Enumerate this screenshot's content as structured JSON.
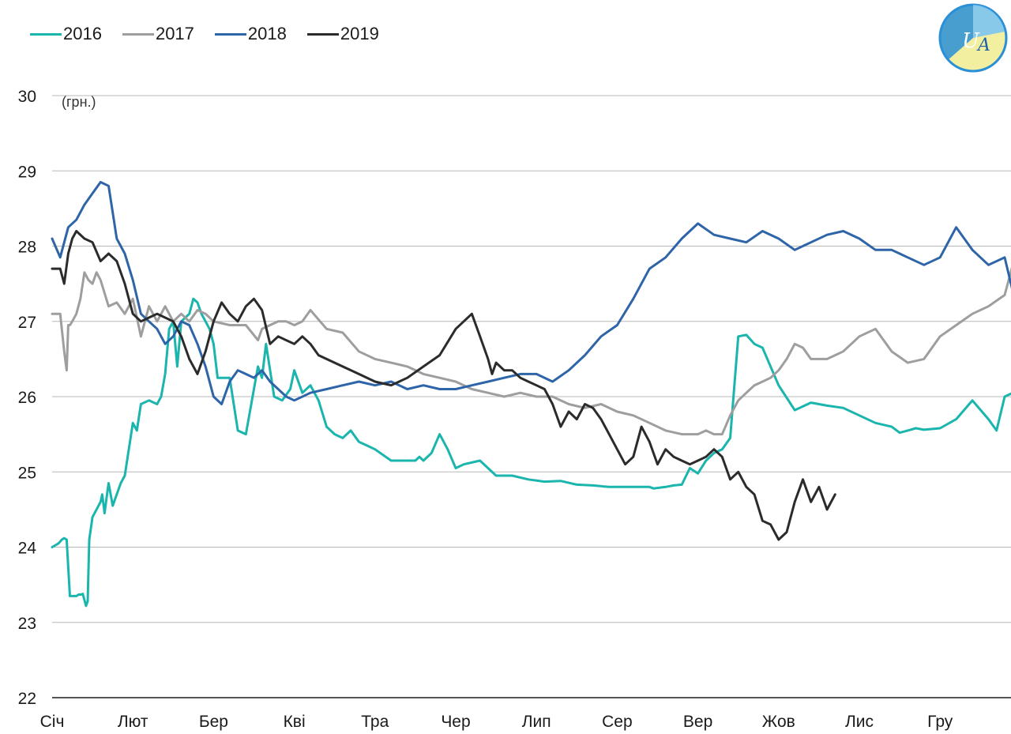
{
  "chart_data": {
    "type": "line",
    "unit_label": "(грн.)",
    "ylim": [
      22,
      30
    ],
    "yticks": [
      "22",
      "23",
      "24",
      "25",
      "26",
      "27",
      "28",
      "29",
      "30"
    ],
    "categories": [
      "Січ",
      "Лют",
      "Бер",
      "Кві",
      "Тра",
      "Чер",
      "Лип",
      "Сер",
      "Вер",
      "Жов",
      "Лис",
      "Гру"
    ],
    "grid": true,
    "legend_position": "top-left",
    "series": [
      {
        "name": "2016",
        "color": "#1ab5ad",
        "x": [
          0,
          0.08,
          0.12,
          0.15,
          0.18,
          0.22,
          0.3,
          0.33,
          0.36,
          0.38,
          0.42,
          0.44,
          0.46,
          0.5,
          0.55,
          0.6,
          0.62,
          0.65,
          0.68,
          0.7,
          0.75,
          0.8,
          0.85,
          0.9,
          1.0,
          1.05,
          1.1,
          1.2,
          1.3,
          1.35,
          1.4,
          1.45,
          1.5,
          1.55,
          1.6,
          1.65,
          1.7,
          1.75,
          1.8,
          1.85,
          1.95,
          2.0,
          2.05,
          2.1,
          2.2,
          2.3,
          2.4,
          2.5,
          2.55,
          2.6,
          2.65,
          2.75,
          2.85,
          2.95,
          3.0,
          3.1,
          3.2,
          3.3,
          3.4,
          3.5,
          3.6,
          3.7,
          3.8,
          3.9,
          4.0,
          4.2,
          4.4,
          4.5,
          4.55,
          4.6,
          4.7,
          4.8,
          4.9,
          5.0,
          5.1,
          5.3,
          5.5,
          5.7,
          5.9,
          6.1,
          6.3,
          6.5,
          6.7,
          6.9,
          7.1,
          7.3,
          7.4,
          7.45,
          7.6,
          7.7,
          7.8,
          7.9,
          8.0,
          8.1,
          8.2,
          8.3,
          8.4,
          8.5,
          8.6,
          8.7,
          8.8,
          9.0,
          9.2,
          9.4,
          9.6,
          9.8,
          10.0,
          10.2,
          10.4,
          10.5,
          10.6,
          10.7,
          10.8,
          11.0,
          11.2,
          11.4,
          11.6,
          11.7,
          11.8,
          11.9,
          12.0,
          12.1
        ],
        "values": [
          24.0,
          24.05,
          24.1,
          24.12,
          24.1,
          23.35,
          23.35,
          23.37,
          23.37,
          23.38,
          23.22,
          23.28,
          24.1,
          24.4,
          24.5,
          24.6,
          24.7,
          24.45,
          24.7,
          24.85,
          24.55,
          24.7,
          24.85,
          24.95,
          25.65,
          25.55,
          25.9,
          25.95,
          25.9,
          26.0,
          26.3,
          26.9,
          27.0,
          26.4,
          27.0,
          27.05,
          27.1,
          27.3,
          27.25,
          27.1,
          26.9,
          26.7,
          26.25,
          26.25,
          26.25,
          25.55,
          25.5,
          26.1,
          26.4,
          26.25,
          26.7,
          26.0,
          25.95,
          26.1,
          26.35,
          26.05,
          26.15,
          25.95,
          25.6,
          25.5,
          25.45,
          25.55,
          25.4,
          25.35,
          25.3,
          25.15,
          25.15,
          25.15,
          25.2,
          25.15,
          25.25,
          25.5,
          25.3,
          25.05,
          25.1,
          25.15,
          24.95,
          24.95,
          24.9,
          24.87,
          24.88,
          24.83,
          24.82,
          24.8,
          24.8,
          24.8,
          24.8,
          24.78,
          24.8,
          24.82,
          24.83,
          25.05,
          24.98,
          25.15,
          25.25,
          25.3,
          25.45,
          26.8,
          26.82,
          26.7,
          26.65,
          26.15,
          25.82,
          25.92,
          25.88,
          25.85,
          25.75,
          25.65,
          25.6,
          25.52,
          25.55,
          25.58,
          25.56,
          25.58,
          25.7,
          25.95,
          25.7,
          25.55,
          26.0,
          26.05,
          26.2,
          26.4
        ]
      },
      {
        "name": "2017",
        "color": "#9e9e9e",
        "x": [
          0,
          0.1,
          0.15,
          0.18,
          0.2,
          0.22,
          0.25,
          0.3,
          0.35,
          0.4,
          0.45,
          0.5,
          0.55,
          0.6,
          0.7,
          0.8,
          0.9,
          1.0,
          1.1,
          1.2,
          1.3,
          1.4,
          1.5,
          1.6,
          1.7,
          1.8,
          1.9,
          2.0,
          2.2,
          2.4,
          2.55,
          2.6,
          2.7,
          2.8,
          2.9,
          3.0,
          3.1,
          3.2,
          3.4,
          3.6,
          3.8,
          4.0,
          4.2,
          4.4,
          4.6,
          4.8,
          5.0,
          5.2,
          5.4,
          5.6,
          5.8,
          6.0,
          6.2,
          6.4,
          6.6,
          6.8,
          7.0,
          7.2,
          7.4,
          7.6,
          7.8,
          8.0,
          8.1,
          8.2,
          8.3,
          8.4,
          8.5,
          8.6,
          8.7,
          8.8,
          8.9,
          9.0,
          9.1,
          9.2,
          9.3,
          9.4,
          9.6,
          9.8,
          10.0,
          10.2,
          10.4,
          10.6,
          10.8,
          11.0,
          11.2,
          11.4,
          11.6,
          11.8,
          11.9,
          12.0,
          12.1
        ],
        "values": [
          27.1,
          27.1,
          26.6,
          26.35,
          26.95,
          26.95,
          27.0,
          27.1,
          27.3,
          27.65,
          27.55,
          27.5,
          27.65,
          27.55,
          27.2,
          27.25,
          27.1,
          27.3,
          26.8,
          27.2,
          27.0,
          27.2,
          27.0,
          27.1,
          27.0,
          27.15,
          27.1,
          27.0,
          26.95,
          26.95,
          26.75,
          26.9,
          26.95,
          27.0,
          27.0,
          26.95,
          27.0,
          27.15,
          26.9,
          26.85,
          26.6,
          26.5,
          26.45,
          26.4,
          26.3,
          26.25,
          26.2,
          26.1,
          26.05,
          26.0,
          26.05,
          26.0,
          26.0,
          25.9,
          25.85,
          25.9,
          25.8,
          25.75,
          25.65,
          25.55,
          25.5,
          25.5,
          25.55,
          25.5,
          25.5,
          25.75,
          25.95,
          26.05,
          26.15,
          26.2,
          26.25,
          26.35,
          26.5,
          26.7,
          26.65,
          26.5,
          26.5,
          26.6,
          26.8,
          26.9,
          26.6,
          26.45,
          26.5,
          26.8,
          26.95,
          27.1,
          27.2,
          27.35,
          27.75,
          27.9,
          28.05
        ]
      },
      {
        "name": "2018",
        "color": "#2e64a8",
        "x": [
          0,
          0.1,
          0.2,
          0.3,
          0.4,
          0.5,
          0.6,
          0.7,
          0.8,
          0.9,
          1.0,
          1.1,
          1.2,
          1.3,
          1.4,
          1.5,
          1.6,
          1.7,
          1.8,
          1.9,
          2.0,
          2.1,
          2.2,
          2.3,
          2.4,
          2.5,
          2.6,
          2.7,
          2.8,
          2.9,
          3.0,
          3.2,
          3.4,
          3.6,
          3.8,
          4.0,
          4.2,
          4.4,
          4.6,
          4.8,
          5.0,
          5.2,
          5.4,
          5.6,
          5.8,
          6.0,
          6.2,
          6.4,
          6.6,
          6.8,
          7.0,
          7.2,
          7.4,
          7.6,
          7.8,
          8.0,
          8.2,
          8.4,
          8.6,
          8.8,
          9.0,
          9.2,
          9.4,
          9.6,
          9.8,
          10.0,
          10.2,
          10.4,
          10.6,
          10.8,
          11.0,
          11.2,
          11.4,
          11.6,
          11.8,
          11.9,
          12.0,
          12.1
        ],
        "values": [
          28.1,
          27.85,
          28.25,
          28.35,
          28.55,
          28.7,
          28.85,
          28.8,
          28.1,
          27.9,
          27.55,
          27.1,
          27.0,
          26.9,
          26.7,
          26.8,
          27.0,
          26.95,
          26.7,
          26.4,
          26.0,
          25.9,
          26.2,
          26.35,
          26.3,
          26.25,
          26.35,
          26.2,
          26.1,
          26.0,
          25.95,
          26.05,
          26.1,
          26.15,
          26.2,
          26.15,
          26.2,
          26.1,
          26.15,
          26.1,
          26.1,
          26.15,
          26.2,
          26.25,
          26.3,
          26.3,
          26.2,
          26.35,
          26.55,
          26.8,
          26.95,
          27.3,
          27.7,
          27.85,
          28.1,
          28.3,
          28.15,
          28.1,
          28.05,
          28.2,
          28.1,
          27.95,
          28.05,
          28.15,
          28.2,
          28.1,
          27.95,
          27.95,
          27.85,
          27.75,
          27.85,
          28.25,
          27.95,
          27.75,
          27.85,
          27.4,
          27.3,
          27.7
        ]
      },
      {
        "name": "2019",
        "color": "#2b2b2b",
        "x": [
          0,
          0.1,
          0.15,
          0.2,
          0.25,
          0.3,
          0.4,
          0.5,
          0.6,
          0.7,
          0.8,
          0.9,
          1.0,
          1.1,
          1.2,
          1.3,
          1.4,
          1.5,
          1.6,
          1.7,
          1.8,
          1.9,
          2.0,
          2.1,
          2.2,
          2.3,
          2.4,
          2.5,
          2.6,
          2.7,
          2.8,
          2.9,
          3.0,
          3.1,
          3.2,
          3.3,
          3.4,
          3.6,
          3.8,
          4.0,
          4.2,
          4.4,
          4.6,
          4.8,
          5.0,
          5.2,
          5.3,
          5.4,
          5.45,
          5.5,
          5.55,
          5.6,
          5.7,
          5.8,
          5.9,
          6.0,
          6.1,
          6.2,
          6.3,
          6.4,
          6.5,
          6.6,
          6.7,
          6.8,
          6.9,
          7.0,
          7.1,
          7.2,
          7.3,
          7.4,
          7.5,
          7.6,
          7.7,
          7.8,
          7.9,
          8.0,
          8.1,
          8.2,
          8.3,
          8.4,
          8.5,
          8.6,
          8.7,
          8.8,
          8.9,
          9.0,
          9.1,
          9.2,
          9.3,
          9.4,
          9.5,
          9.6,
          9.7
        ],
        "values": [
          27.7,
          27.7,
          27.5,
          27.9,
          28.1,
          28.2,
          28.1,
          28.05,
          27.8,
          27.9,
          27.8,
          27.5,
          27.1,
          27.0,
          27.05,
          27.1,
          27.05,
          27.0,
          26.8,
          26.5,
          26.3,
          26.6,
          27.0,
          27.25,
          27.1,
          27.0,
          27.2,
          27.3,
          27.15,
          26.7,
          26.8,
          26.75,
          26.7,
          26.8,
          26.7,
          26.55,
          26.5,
          26.4,
          26.3,
          26.2,
          26.15,
          26.25,
          26.4,
          26.55,
          26.9,
          27.1,
          26.8,
          26.5,
          26.3,
          26.45,
          26.4,
          26.35,
          26.35,
          26.25,
          26.2,
          26.15,
          26.1,
          25.9,
          25.6,
          25.8,
          25.7,
          25.9,
          25.85,
          25.7,
          25.5,
          25.3,
          25.1,
          25.2,
          25.6,
          25.4,
          25.1,
          25.3,
          25.2,
          25.15,
          25.1,
          25.15,
          25.2,
          25.3,
          25.2,
          24.9,
          25.0,
          24.8,
          24.7,
          24.35,
          24.3,
          24.1,
          24.2,
          24.6,
          24.9,
          24.6,
          24.8,
          24.5,
          24.7
        ]
      }
    ]
  }
}
